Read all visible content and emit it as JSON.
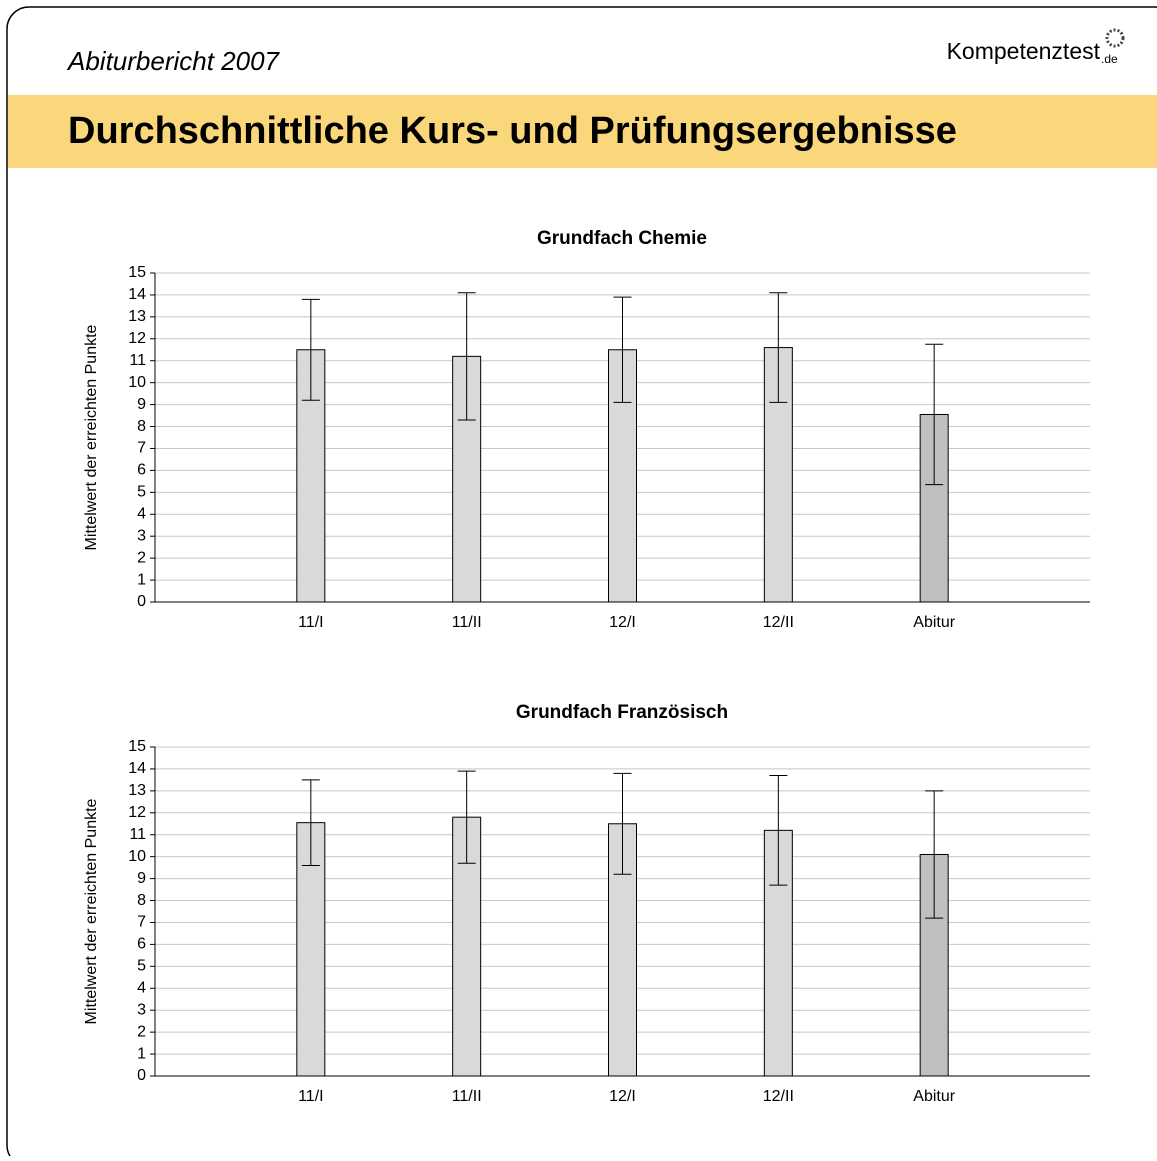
{
  "header": {
    "subtitle": "Abiturbericht 2007",
    "logo": "Kompetenztest",
    "logo_suffix": ".de",
    "title": "Durchschnittliche Kurs- und Prüfungsergebnisse"
  },
  "chart_data": [
    {
      "type": "bar",
      "title": "Grundfach Chemie",
      "y_label": "Mittelwert der erreichten Punkte",
      "categories": [
        "11/I",
        "11/II",
        "12/I",
        "12/II",
        "Abitur"
      ],
      "values": [
        11.5,
        11.2,
        11.5,
        11.6,
        8.55
      ],
      "errors": [
        2.3,
        2.9,
        2.4,
        2.5,
        3.2
      ],
      "colors": [
        "#d9d9d9",
        "#d9d9d9",
        "#d9d9d9",
        "#d9d9d9",
        "#bfbfbf"
      ],
      "ylim": [
        0,
        15
      ],
      "yticks": [
        0,
        1,
        2,
        3,
        4,
        5,
        6,
        7,
        8,
        9,
        10,
        11,
        12,
        13,
        14,
        15
      ],
      "grid": true
    },
    {
      "type": "bar",
      "title": "Grundfach Französisch",
      "y_label": "Mittelwert der erreichten Punkte",
      "categories": [
        "11/I",
        "11/II",
        "12/I",
        "12/II",
        "Abitur"
      ],
      "values": [
        11.55,
        11.8,
        11.5,
        11.2,
        10.1
      ],
      "errors": [
        1.95,
        2.1,
        2.3,
        2.5,
        2.9
      ],
      "colors": [
        "#d9d9d9",
        "#d9d9d9",
        "#d9d9d9",
        "#d9d9d9",
        "#bfbfbf"
      ],
      "ylim": [
        0,
        15
      ],
      "yticks": [
        0,
        1,
        2,
        3,
        4,
        5,
        6,
        7,
        8,
        9,
        10,
        11,
        12,
        13,
        14,
        15
      ],
      "grid": true
    }
  ]
}
